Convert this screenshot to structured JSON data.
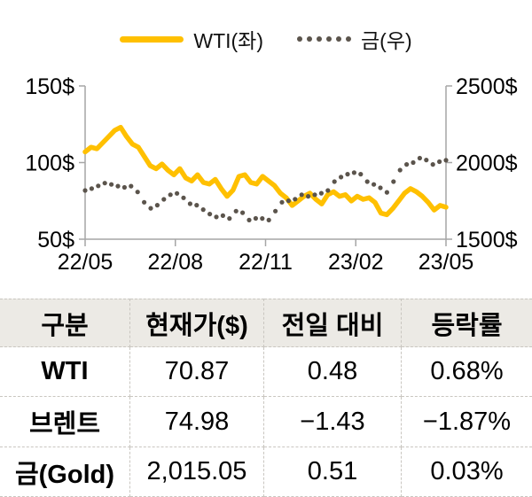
{
  "legend": {
    "items": [
      {
        "label": "WTI(좌)",
        "swatch": "line"
      },
      {
        "label": "금(우)",
        "swatch": "dots"
      }
    ]
  },
  "colors": {
    "wti_line": "#FFC000",
    "gold_dots": "#5B544C",
    "axis": "#A6A6A6",
    "label_text": "#000000",
    "table_header_bg": "#ECEAE5",
    "table_border": "#C9C6C0"
  },
  "chart_data": {
    "type": "line",
    "title": "",
    "x_ticks": [
      "22/05",
      "22/08",
      "22/11",
      "23/02",
      "23/05"
    ],
    "y_left": {
      "ticks": [
        "150$",
        "100$",
        "50$"
      ],
      "max": 150,
      "min": 50
    },
    "y_right": {
      "ticks": [
        "2500$",
        "2000$",
        "1500$"
      ],
      "max": 2500,
      "min": 1500
    },
    "grid": false,
    "legend_position": "top",
    "series": [
      {
        "name": "WTI(좌)",
        "axis": "left",
        "style": "solid",
        "color": "#FFC000",
        "values": [
          107,
          110,
          109,
          113,
          117,
          121,
          123,
          117,
          112,
          110,
          104,
          98,
          96,
          99,
          95,
          92,
          96,
          90,
          88,
          92,
          87,
          86,
          89,
          83,
          78,
          82,
          91,
          92,
          87,
          86,
          91,
          88,
          85,
          80,
          77,
          72,
          75,
          78,
          80,
          76,
          73,
          79,
          81,
          78,
          79,
          75,
          78,
          76,
          77,
          74,
          67,
          66,
          70,
          75,
          80,
          83,
          81,
          78,
          74,
          69,
          72,
          70.87
        ]
      },
      {
        "name": "금(우)",
        "axis": "right",
        "style": "dotted",
        "color": "#5B544C",
        "values": [
          1818,
          1830,
          1848,
          1866,
          1857,
          1846,
          1838,
          1846,
          1808,
          1741,
          1702,
          1722,
          1760,
          1790,
          1799,
          1770,
          1731,
          1722,
          1693,
          1664,
          1645,
          1654,
          1635,
          1683,
          1673,
          1625,
          1636,
          1635,
          1625,
          1683,
          1741,
          1751,
          1761,
          1790,
          1780,
          1790,
          1800,
          1818,
          1876,
          1905,
          1924,
          1934,
          1924,
          1876,
          1857,
          1835,
          1806,
          1876,
          1951,
          1988,
          2000,
          2029,
          2017,
          1988,
          2006,
          2015.05
        ]
      }
    ]
  },
  "table": {
    "headers": [
      "구분",
      "현재가($)",
      "전일 대비",
      "등락률"
    ],
    "rows": [
      {
        "cells": [
          "WTI",
          "70.87",
          "0.48",
          "0.68%"
        ]
      },
      {
        "cells": [
          "브렌트",
          "74.98",
          "−1.43",
          "−1.87%"
        ]
      },
      {
        "cells": [
          "금(Gold)",
          "2,015.05",
          "0.51",
          "0.03%"
        ]
      }
    ]
  }
}
